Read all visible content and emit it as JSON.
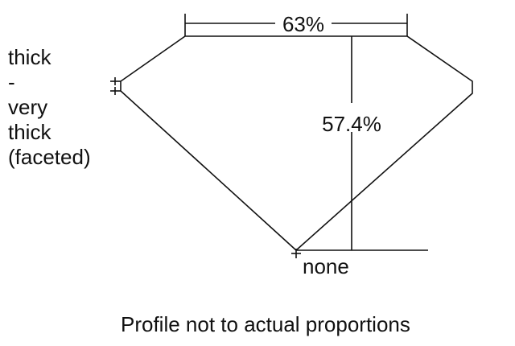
{
  "diagram": {
    "girdle_label_lines": [
      "thick",
      "-",
      "very",
      "thick",
      "(faceted)"
    ],
    "table_percent": "63%",
    "depth_percent": "57.4%",
    "culet_label": "none",
    "caption": "Profile not to actual proportions",
    "line_color": "#111111",
    "background_color": "#ffffff"
  }
}
